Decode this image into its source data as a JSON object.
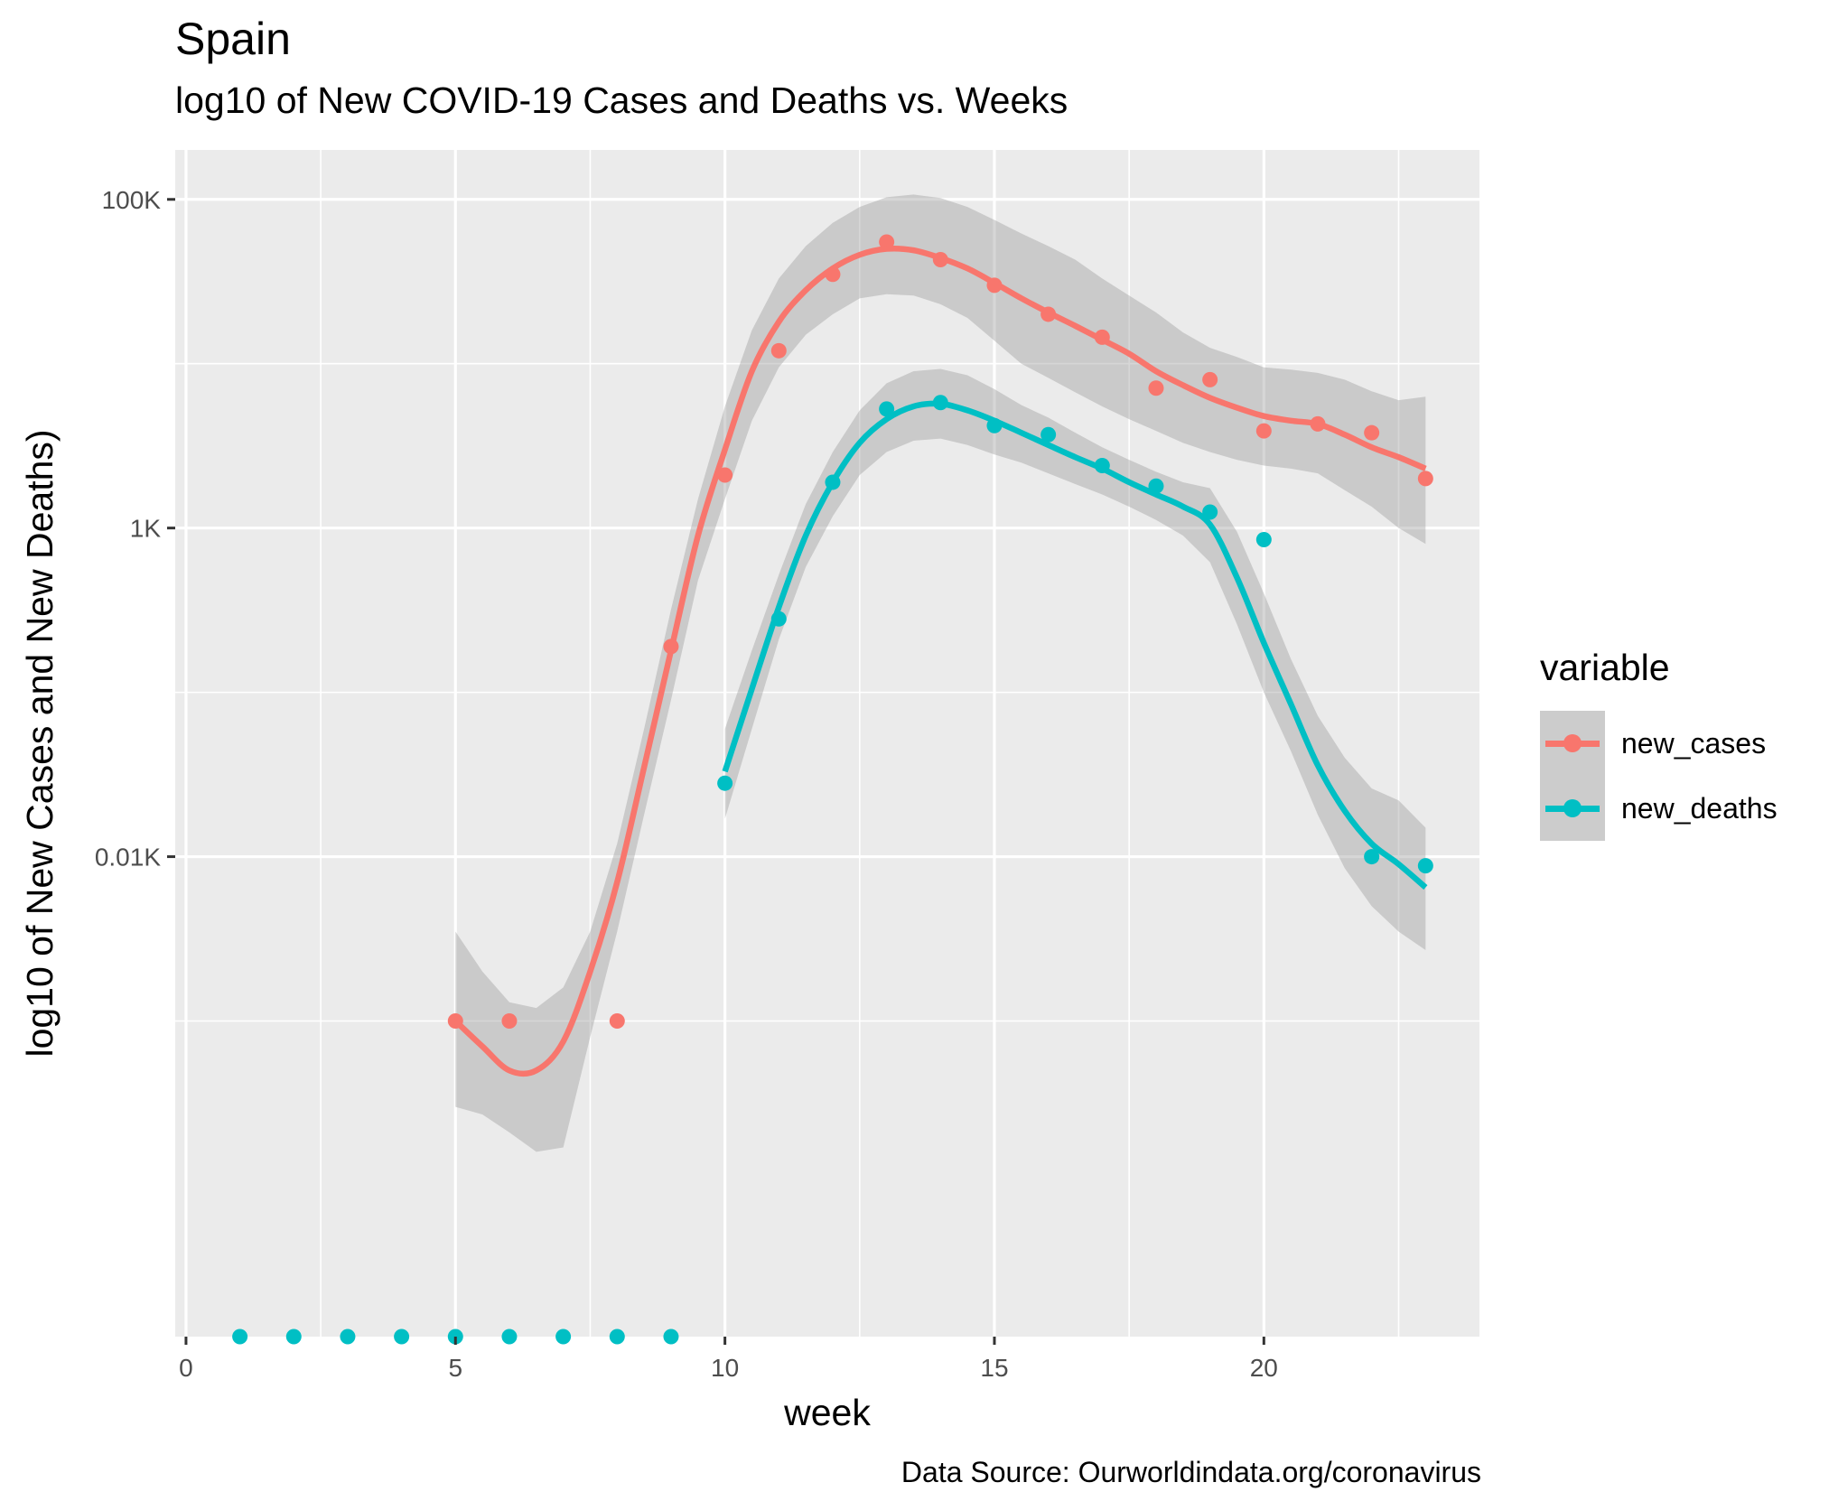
{
  "chart_data": {
    "type": "scatter",
    "title": "Spain",
    "subtitle": "log10 of New COVID-19 Cases and Deaths vs. Weeks",
    "xlabel": "week",
    "ylabel": "log10 of New Cases and New Deaths)",
    "caption": "Data Source: Ourworldindata.org/coronavirus",
    "y_scale": "log10",
    "xlim": [
      -0.2,
      24
    ],
    "ylim": [
      0.012,
      200000
    ],
    "x_ticks": [
      0,
      5,
      10,
      15,
      20
    ],
    "x_tick_labels": [
      "0",
      "5",
      "10",
      "15",
      "20"
    ],
    "y_ticks": [
      10,
      1000,
      100000
    ],
    "y_tick_labels": [
      "0.01K",
      "1K",
      "100K"
    ],
    "grid": true,
    "legend": {
      "title": "variable",
      "placement": "right"
    },
    "series": [
      {
        "name": "new_cases",
        "color": "#F8766D",
        "points": [
          [
            5,
            1
          ],
          [
            6,
            1
          ],
          [
            8,
            1
          ],
          [
            9,
            190
          ],
          [
            10,
            2100
          ],
          [
            11,
            12000
          ],
          [
            12,
            35000
          ],
          [
            13,
            55000
          ],
          [
            14,
            43000
          ],
          [
            15,
            30000
          ],
          [
            16,
            20000
          ],
          [
            17,
            14500
          ],
          [
            18,
            7100
          ],
          [
            19,
            8000
          ],
          [
            20,
            3900
          ],
          [
            21,
            4300
          ],
          [
            22,
            3800
          ],
          [
            23,
            2000
          ]
        ],
        "smooth": [
          [
            5,
            1.0
          ],
          [
            5.5,
            0.7
          ],
          [
            6,
            0.5
          ],
          [
            6.5,
            0.5
          ],
          [
            7,
            0.75
          ],
          [
            7.5,
            2
          ],
          [
            8,
            7
          ],
          [
            8.5,
            35
          ],
          [
            9,
            180
          ],
          [
            9.5,
            900
          ],
          [
            10,
            3000
          ],
          [
            10.5,
            9000
          ],
          [
            11,
            18000
          ],
          [
            11.5,
            28000
          ],
          [
            12,
            38000
          ],
          [
            12.5,
            46000
          ],
          [
            13,
            50000
          ],
          [
            13.5,
            49000
          ],
          [
            14,
            44000
          ],
          [
            14.5,
            38000
          ],
          [
            15,
            31000
          ],
          [
            15.5,
            25000
          ],
          [
            16,
            20500
          ],
          [
            16.5,
            17000
          ],
          [
            17,
            14000
          ],
          [
            17.5,
            11500
          ],
          [
            18,
            9000
          ],
          [
            18.5,
            7400
          ],
          [
            19,
            6200
          ],
          [
            19.5,
            5400
          ],
          [
            20,
            4800
          ],
          [
            20.5,
            4500
          ],
          [
            21,
            4300
          ],
          [
            21.5,
            3700
          ],
          [
            22,
            3100
          ],
          [
            22.5,
            2700
          ],
          [
            23,
            2300
          ]
        ],
        "band_upper": [
          [
            5,
            3.5
          ],
          [
            5.5,
            2.0
          ],
          [
            6,
            1.3
          ],
          [
            6.5,
            1.2
          ],
          [
            7,
            1.6
          ],
          [
            7.5,
            3.5
          ],
          [
            8,
            12
          ],
          [
            8.5,
            60
          ],
          [
            9,
            320
          ],
          [
            9.5,
            1500
          ],
          [
            10,
            5500
          ],
          [
            10.5,
            16000
          ],
          [
            11,
            33000
          ],
          [
            11.5,
            52000
          ],
          [
            12,
            72000
          ],
          [
            12.5,
            90000
          ],
          [
            13,
            103000
          ],
          [
            13.5,
            107000
          ],
          [
            14,
            102000
          ],
          [
            14.5,
            90000
          ],
          [
            15,
            75000
          ],
          [
            15.5,
            62000
          ],
          [
            16,
            52000
          ],
          [
            16.5,
            43000
          ],
          [
            17,
            33000
          ],
          [
            17.5,
            26000
          ],
          [
            18,
            20500
          ],
          [
            18.5,
            15500
          ],
          [
            19,
            12500
          ],
          [
            19.5,
            11000
          ],
          [
            20,
            9500
          ],
          [
            20.5,
            9200
          ],
          [
            21,
            8800
          ],
          [
            21.5,
            8000
          ],
          [
            22,
            6800
          ],
          [
            22.5,
            6000
          ],
          [
            23,
            6300
          ]
        ],
        "band_lower": [
          [
            5,
            0.3
          ],
          [
            5.5,
            0.27
          ],
          [
            6,
            0.21
          ],
          [
            6.5,
            0.16
          ],
          [
            7,
            0.17
          ],
          [
            7.5,
            0.8
          ],
          [
            8,
            3.5
          ],
          [
            8.5,
            18
          ],
          [
            9,
            90
          ],
          [
            9.5,
            480
          ],
          [
            10,
            1500
          ],
          [
            10.5,
            4500
          ],
          [
            11,
            9500
          ],
          [
            11.5,
            15000
          ],
          [
            12,
            20000
          ],
          [
            12.5,
            25000
          ],
          [
            13,
            26500
          ],
          [
            13.5,
            26000
          ],
          [
            14,
            23000
          ],
          [
            14.5,
            19000
          ],
          [
            15,
            13800
          ],
          [
            15.5,
            10000
          ],
          [
            16,
            8200
          ],
          [
            16.5,
            6700
          ],
          [
            17,
            5500
          ],
          [
            17.5,
            4600
          ],
          [
            18,
            3900
          ],
          [
            18.5,
            3300
          ],
          [
            19,
            2900
          ],
          [
            19.5,
            2600
          ],
          [
            20,
            2400
          ],
          [
            20.5,
            2300
          ],
          [
            21,
            2150
          ],
          [
            21.5,
            1700
          ],
          [
            22,
            1350
          ],
          [
            22.5,
            1000
          ],
          [
            23,
            800
          ]
        ]
      },
      {
        "name": "new_deaths",
        "color": "#00BFC4",
        "points": [
          [
            1,
            0.012
          ],
          [
            2,
            0.012
          ],
          [
            3,
            0.012
          ],
          [
            4,
            0.012
          ],
          [
            5,
            0.012
          ],
          [
            6,
            0.012
          ],
          [
            7,
            0.012
          ],
          [
            8,
            0.012
          ],
          [
            9,
            0.012
          ],
          [
            10,
            28
          ],
          [
            11,
            280
          ],
          [
            12,
            1900
          ],
          [
            13,
            5300
          ],
          [
            14,
            5800
          ],
          [
            15,
            4200
          ],
          [
            16,
            3700
          ],
          [
            17,
            2400
          ],
          [
            18,
            1800
          ],
          [
            19,
            1250
          ],
          [
            20,
            850
          ],
          [
            22,
            10
          ],
          [
            23,
            8.8
          ]
        ],
        "smooth": [
          [
            10,
            33
          ],
          [
            10.5,
            105
          ],
          [
            11,
            330
          ],
          [
            11.5,
            900
          ],
          [
            12,
            1900
          ],
          [
            12.5,
            3300
          ],
          [
            13,
            4600
          ],
          [
            13.5,
            5500
          ],
          [
            14,
            5700
          ],
          [
            14.5,
            5200
          ],
          [
            15,
            4500
          ],
          [
            15.5,
            3800
          ],
          [
            16,
            3200
          ],
          [
            16.5,
            2700
          ],
          [
            17,
            2300
          ],
          [
            17.5,
            1900
          ],
          [
            18,
            1600
          ],
          [
            18.5,
            1350
          ],
          [
            19,
            1050
          ],
          [
            19.5,
            500
          ],
          [
            20,
            200
          ],
          [
            20.5,
            85
          ],
          [
            21,
            36
          ],
          [
            21.5,
            19
          ],
          [
            22,
            12
          ],
          [
            22.5,
            9
          ],
          [
            23,
            6.5
          ]
        ],
        "band_upper": [
          [
            10,
            60
          ],
          [
            10.5,
            180
          ],
          [
            11,
            520
          ],
          [
            11.5,
            1400
          ],
          [
            12,
            2900
          ],
          [
            12.5,
            5200
          ],
          [
            13,
            7600
          ],
          [
            13.5,
            9000
          ],
          [
            14,
            9300
          ],
          [
            14.5,
            8500
          ],
          [
            15,
            7000
          ],
          [
            15.5,
            5600
          ],
          [
            16,
            4700
          ],
          [
            16.5,
            3800
          ],
          [
            17,
            3100
          ],
          [
            17.5,
            2600
          ],
          [
            18,
            2200
          ],
          [
            18.5,
            1900
          ],
          [
            19,
            1750
          ],
          [
            19.5,
            950
          ],
          [
            20,
            400
          ],
          [
            20.5,
            160
          ],
          [
            21,
            72
          ],
          [
            21.5,
            40
          ],
          [
            22,
            26
          ],
          [
            22.5,
            22
          ],
          [
            23,
            15
          ]
        ],
        "band_lower": [
          [
            10,
            17
          ],
          [
            10.5,
            60
          ],
          [
            11,
            210
          ],
          [
            11.5,
            580
          ],
          [
            12,
            1180
          ],
          [
            12.5,
            2100
          ],
          [
            13,
            2900
          ],
          [
            13.5,
            3400
          ],
          [
            14,
            3500
          ],
          [
            14.5,
            3200
          ],
          [
            15,
            2800
          ],
          [
            15.5,
            2500
          ],
          [
            16,
            2150
          ],
          [
            16.5,
            1850
          ],
          [
            17,
            1600
          ],
          [
            17.5,
            1350
          ],
          [
            18,
            1120
          ],
          [
            18.5,
            900
          ],
          [
            19,
            620
          ],
          [
            19.5,
            260
          ],
          [
            20,
            100
          ],
          [
            20.5,
            44
          ],
          [
            21,
            18
          ],
          [
            21.5,
            8.5
          ],
          [
            22,
            5
          ],
          [
            22.5,
            3.5
          ],
          [
            23,
            2.7
          ]
        ]
      }
    ]
  }
}
